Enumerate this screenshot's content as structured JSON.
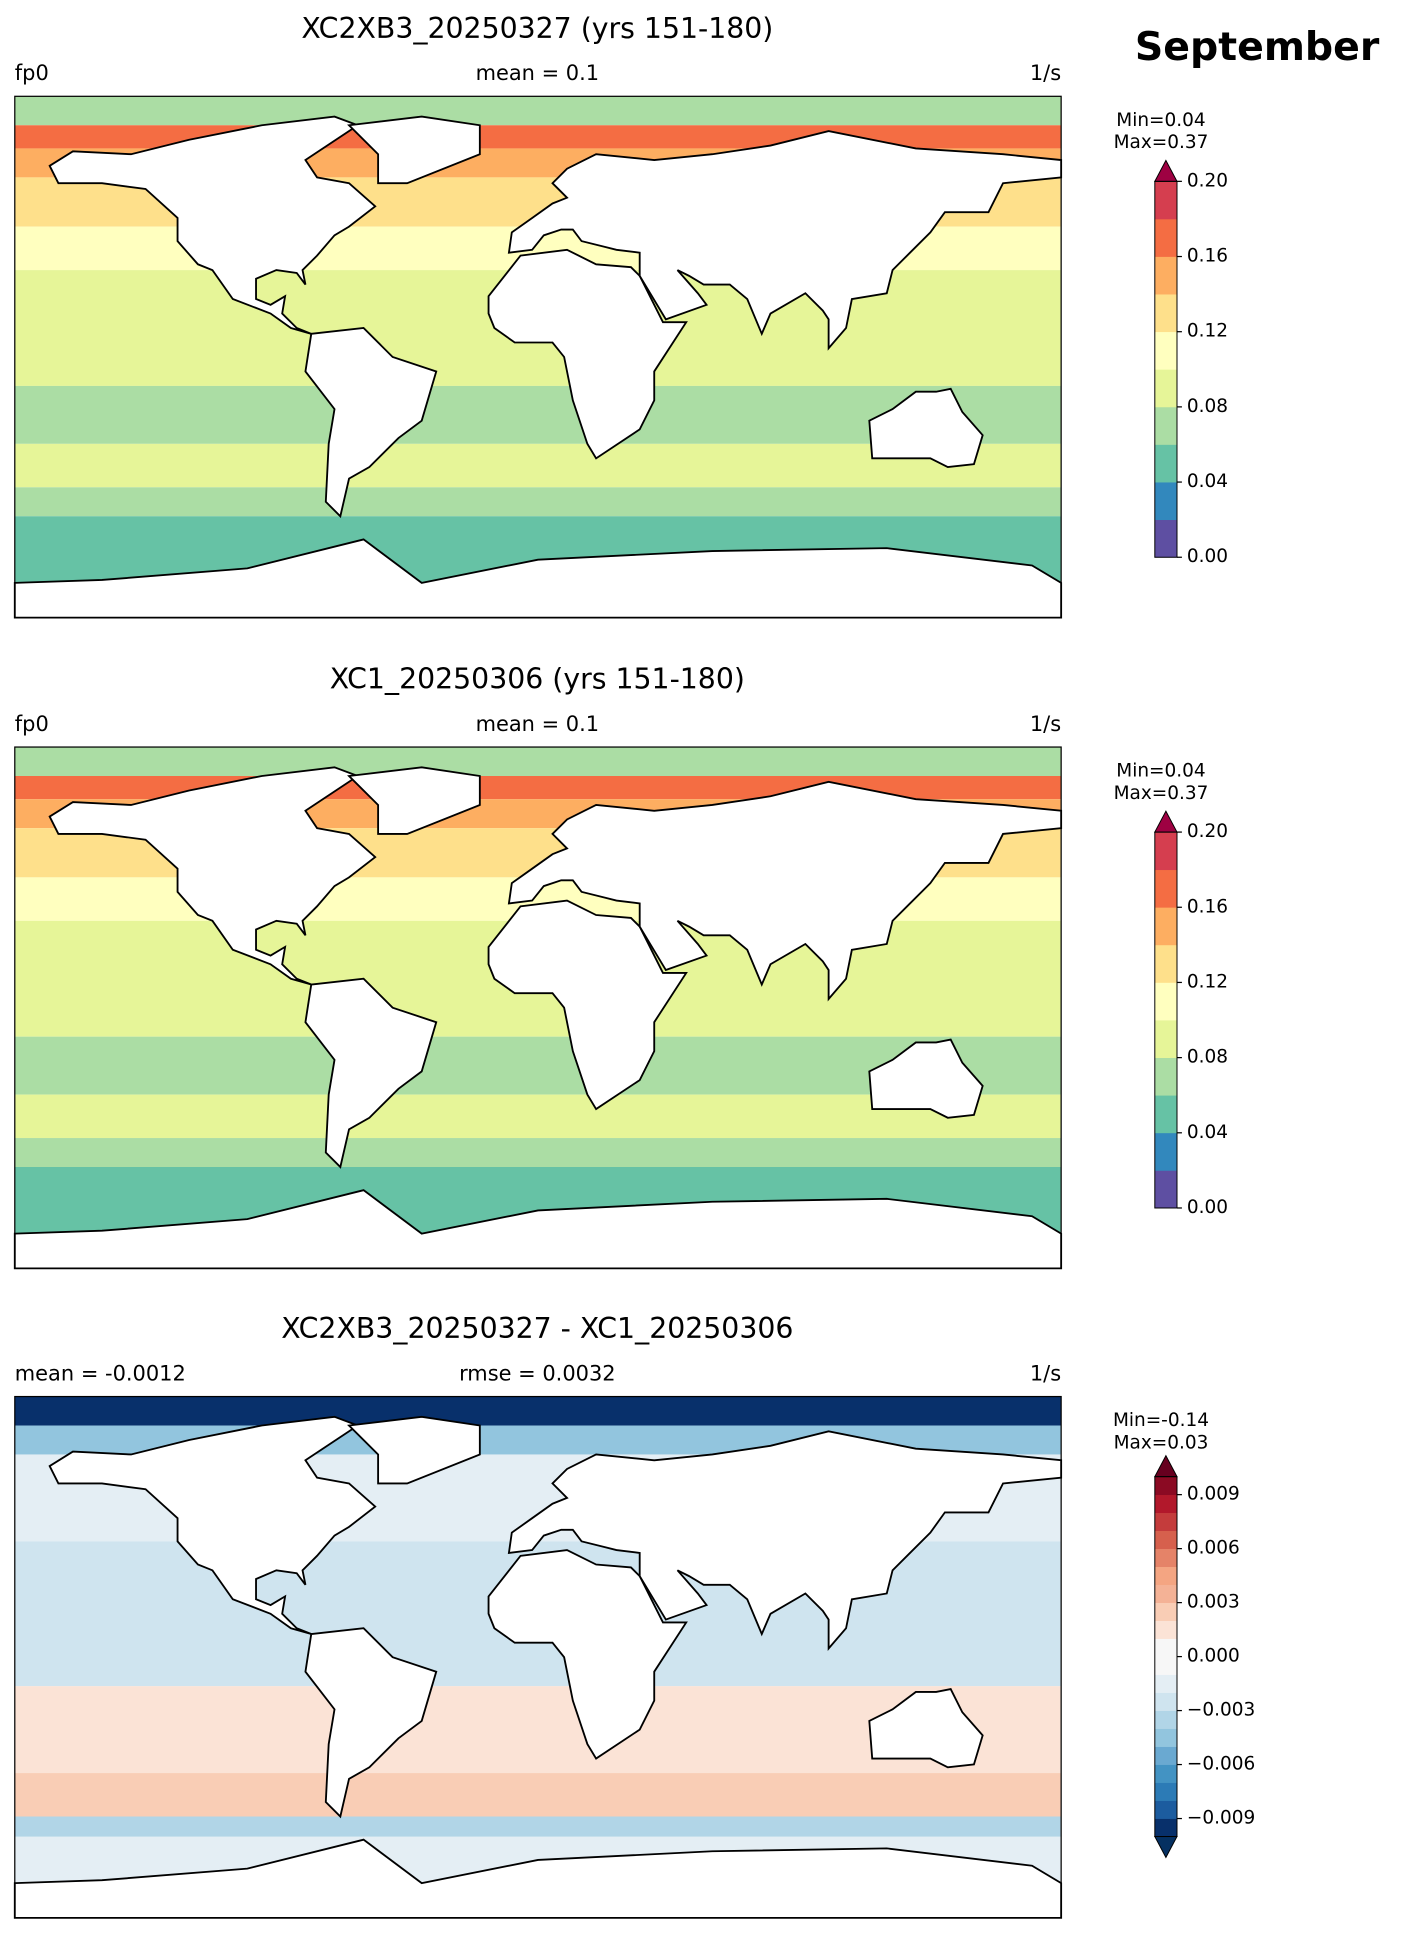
{
  "header": {
    "month": "September"
  },
  "panels": [
    {
      "title": "XC2XB3_20250327 (yrs 151-180)",
      "left": "fp0",
      "center": "mean = 0.1",
      "right": "1/s",
      "min_label": "Min=0.04",
      "max_label": "Max=0.37",
      "colorbar": {
        "ylim": [
          0,
          0.2
        ],
        "colors": [
          "#5e4fa2",
          "#3288bd",
          "#66c2a5",
          "#abdda4",
          "#e6f598",
          "#ffffbf",
          "#fee08b",
          "#fdae61",
          "#f46d43",
          "#d53e4f"
        ],
        "extend_max_color": "#9e0142",
        "yticks": [
          {
            "value": 0,
            "label": "0.00"
          },
          {
            "value": 0.04,
            "label": "0.04"
          },
          {
            "value": 0.08,
            "label": "0.08"
          },
          {
            "value": 0.12,
            "label": "0.12"
          },
          {
            "value": 0.16,
            "label": "0.16"
          },
          {
            "value": 0.2,
            "label": "0.20"
          }
        ]
      }
    },
    {
      "title": "XC1_20250306 (yrs 151-180)",
      "left": "fp0",
      "center": "mean = 0.1",
      "right": "1/s",
      "min_label": "Min=0.04",
      "max_label": "Max=0.37",
      "colorbar": {
        "ylim": [
          0,
          0.2
        ],
        "colors": [
          "#5e4fa2",
          "#3288bd",
          "#66c2a5",
          "#abdda4",
          "#e6f598",
          "#ffffbf",
          "#fee08b",
          "#fdae61",
          "#f46d43",
          "#d53e4f"
        ],
        "extend_max_color": "#9e0142",
        "yticks": [
          {
            "value": 0,
            "label": "0.00"
          },
          {
            "value": 0.04,
            "label": "0.04"
          },
          {
            "value": 0.08,
            "label": "0.08"
          },
          {
            "value": 0.12,
            "label": "0.12"
          },
          {
            "value": 0.16,
            "label": "0.16"
          },
          {
            "value": 0.2,
            "label": "0.20"
          }
        ]
      }
    },
    {
      "title": "XC2XB3_20250327 - XC1_20250306",
      "left": "mean = -0.0012",
      "center": "rmse = 0.0032",
      "right": "1/s",
      "min_label": "Min=-0.14",
      "max_label": "Max=0.03",
      "colorbar": {
        "ylim": [
          -0.01,
          0.01
        ],
        "colors": [
          "#08306b",
          "#1c5c9f",
          "#2c7bb6",
          "#4393c3",
          "#6aa9d1",
          "#92c5de",
          "#b1d5e7",
          "#cfe4ef",
          "#e4eef4",
          "#f7f7f7",
          "#f7f7f7",
          "#fbe3d6",
          "#f9cdb5",
          "#f4b296",
          "#f4a582",
          "#e58368",
          "#d6604d",
          "#c43c3c",
          "#b2182b",
          "#8b0a23"
        ],
        "extend_min_color": "#053061",
        "extend_max_color": "#67001f",
        "yticks": [
          {
            "value": -0.009,
            "label": "−0.009"
          },
          {
            "value": -0.006,
            "label": "−0.006"
          },
          {
            "value": -0.003,
            "label": "−0.003"
          },
          {
            "value": 0,
            "label": "0.000"
          },
          {
            "value": 0.003,
            "label": "0.003"
          },
          {
            "value": 0.006,
            "label": "0.006"
          },
          {
            "value": 0.009,
            "label": "0.009"
          }
        ]
      }
    }
  ]
}
